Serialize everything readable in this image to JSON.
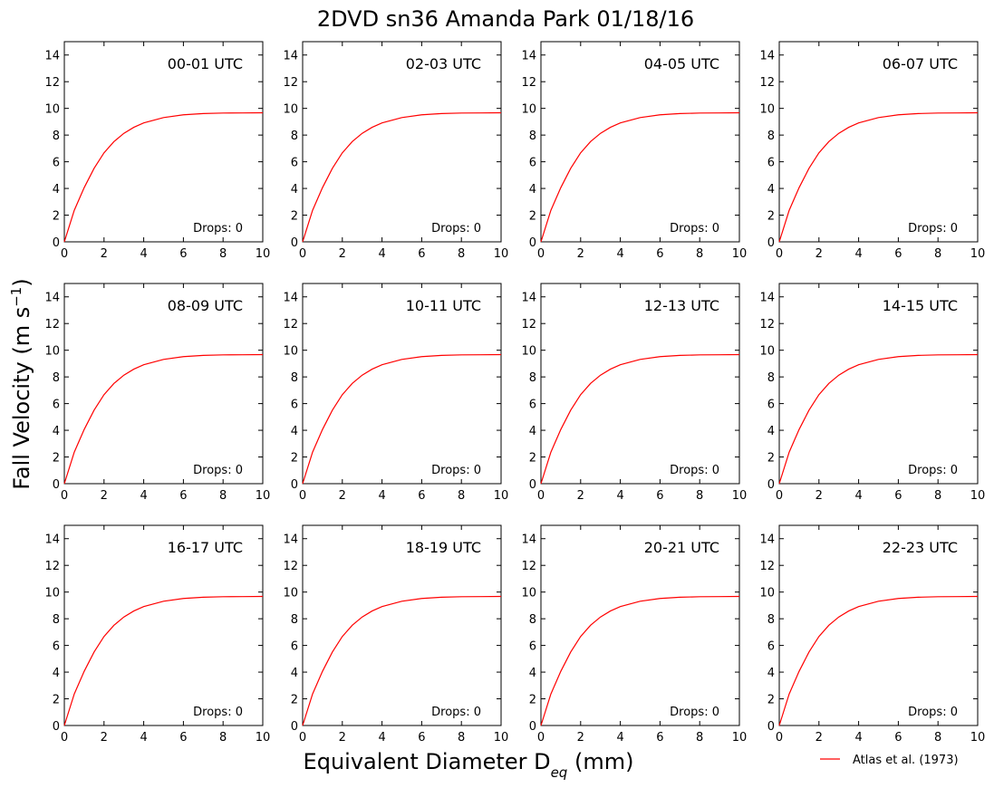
{
  "figure": {
    "title": "2DVD sn36 Amanda Park 01/18/16",
    "ylabel_main": "Fall Velocity (m s",
    "ylabel_sup": "−1",
    "ylabel_close": ")",
    "xlabel_main": "Equivalent Diameter D",
    "xlabel_sub": "eq",
    "xlabel_close": " (mm)",
    "legend": {
      "label": "Atlas et al. (1973)",
      "color": "#ff0000",
      "placement": "bottom-right"
    }
  },
  "chart_data": {
    "type": "line",
    "panels": [
      {
        "title": "00-01 UTC",
        "annotation": "Drops: 0"
      },
      {
        "title": "02-03 UTC",
        "annotation": "Drops: 0"
      },
      {
        "title": "04-05 UTC",
        "annotation": "Drops: 0"
      },
      {
        "title": "06-07 UTC",
        "annotation": "Drops: 0"
      },
      {
        "title": "08-09 UTC",
        "annotation": "Drops: 0"
      },
      {
        "title": "10-11 UTC",
        "annotation": "Drops: 0"
      },
      {
        "title": "12-13 UTC",
        "annotation": "Drops: 0"
      },
      {
        "title": "14-15 UTC",
        "annotation": "Drops: 0"
      },
      {
        "title": "16-17 UTC",
        "annotation": "Drops: 0"
      },
      {
        "title": "18-19 UTC",
        "annotation": "Drops: 0"
      },
      {
        "title": "20-21 UTC",
        "annotation": "Drops: 0"
      },
      {
        "title": "22-23 UTC",
        "annotation": "Drops: 0"
      }
    ],
    "series": [
      {
        "name": "Atlas et al. (1973)",
        "color": "#ff0000",
        "x": [
          0,
          0.5,
          1,
          1.5,
          2,
          2.5,
          3,
          3.5,
          4,
          5,
          6,
          7,
          8,
          9,
          10
        ],
        "y": [
          0,
          2.36,
          4.06,
          5.51,
          6.67,
          7.51,
          8.13,
          8.58,
          8.91,
          9.31,
          9.52,
          9.61,
          9.65,
          9.66,
          9.67
        ]
      }
    ],
    "xlim": [
      0,
      10
    ],
    "ylim": [
      0,
      15
    ],
    "xticks": [
      "0",
      "2",
      "4",
      "6",
      "8",
      "10"
    ],
    "yticks": [
      "0",
      "2",
      "4",
      "6",
      "8",
      "10",
      "12",
      "14"
    ]
  }
}
